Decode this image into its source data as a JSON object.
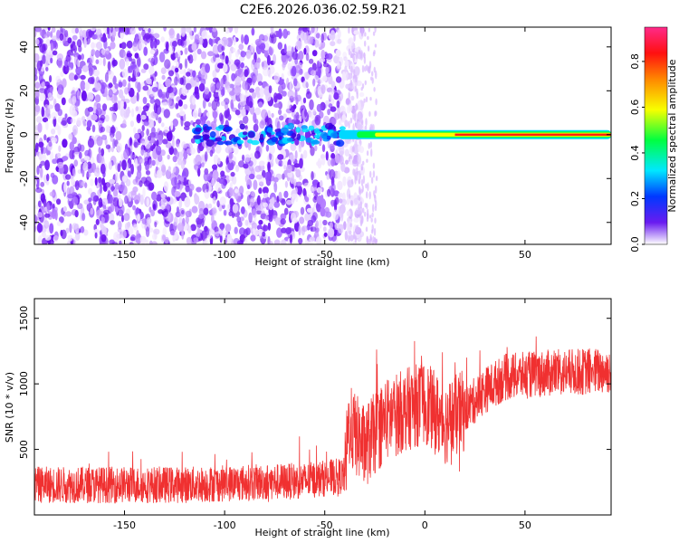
{
  "title": "C2E6.2026.036.02.59.R21",
  "colors": {
    "blob": "#6a1cf0",
    "ridge": "#ff3a00",
    "snr_line": "#f03030",
    "axis": "#000000"
  },
  "chart_data": [
    {
      "type": "heatmap",
      "name": "spectrogram",
      "xlabel": "Height of straight line (km)",
      "ylabel": "Frequency (Hz)",
      "xlim": [
        -195,
        93
      ],
      "ylim": [
        -50,
        49
      ],
      "xticks": [
        -150,
        -100,
        -50,
        0,
        50
      ],
      "yticks": [
        -40,
        -20,
        0,
        20,
        40
      ],
      "colorbar": {
        "label": "Normalized spectral amplitude",
        "range": [
          0.0,
          0.95
        ],
        "ticks": [
          0.0,
          0.2,
          0.4,
          0.6,
          0.8
        ]
      },
      "ridge_frequency_hz": 0,
      "ridge_onset_km": -43,
      "noise_cutoff_km": -43
    },
    {
      "type": "line",
      "name": "snr",
      "xlabel": "Height of straight line (km)",
      "ylabel": "SNR (10 * v/v)",
      "xlim": [
        -195,
        93
      ],
      "ylim": [
        0,
        1650
      ],
      "xticks": [
        -150,
        -100,
        -50,
        0,
        50
      ],
      "yticks": [
        500,
        1000,
        1500
      ],
      "trend": {
        "x": [
          -195,
          -120,
          -80,
          -60,
          -40,
          -38,
          -30,
          -20,
          -10,
          0,
          10,
          20,
          30,
          40,
          60,
          93
        ],
        "y": [
          230,
          230,
          250,
          260,
          300,
          680,
          520,
          720,
          800,
          860,
          700,
          800,
          950,
          1050,
          1080,
          1100
        ]
      },
      "noise_amplitude": [
        {
          "from": -195,
          "to": -40,
          "amp": 140
        },
        {
          "from": -40,
          "to": 20,
          "amp": 320
        },
        {
          "from": 20,
          "to": 93,
          "amp": 180
        }
      ]
    }
  ]
}
